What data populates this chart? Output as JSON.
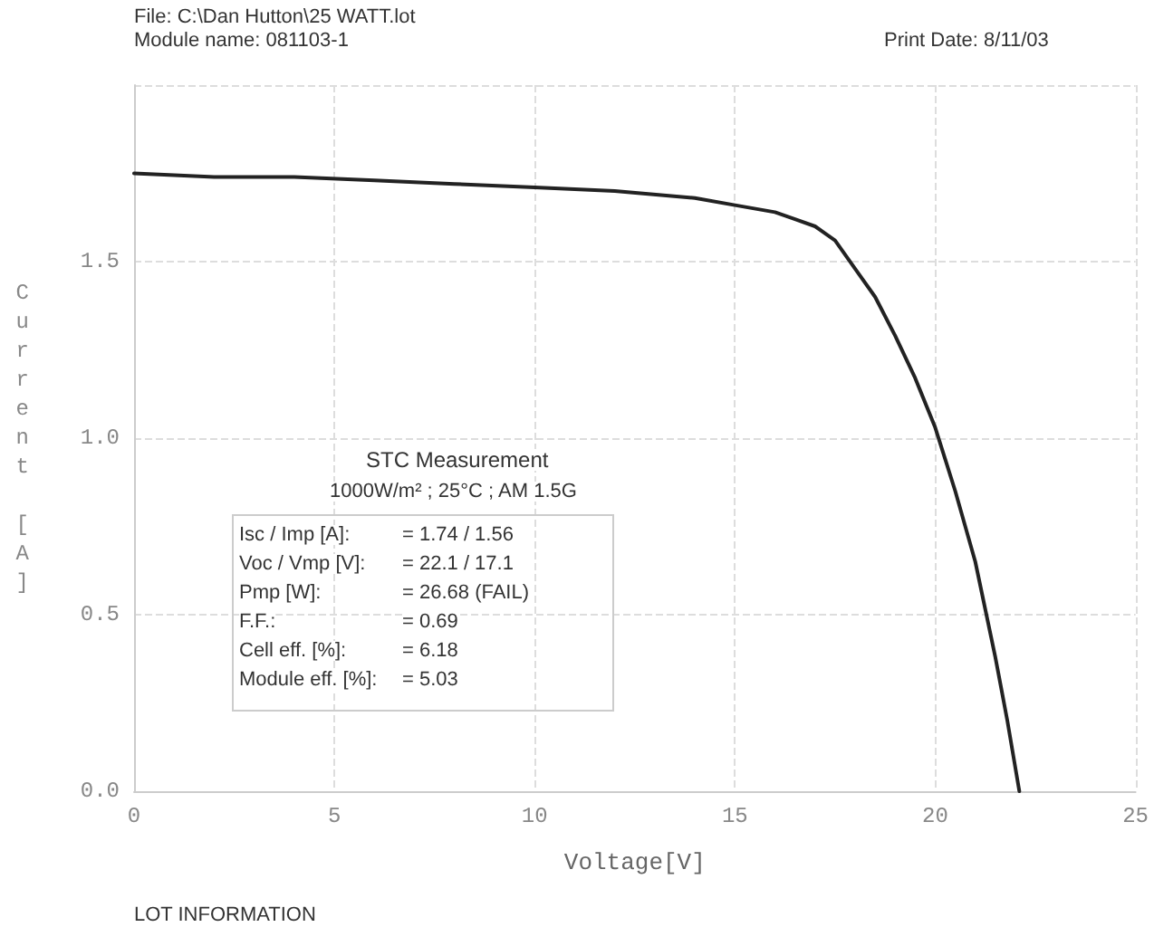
{
  "chart_data": {
    "type": "line",
    "xlabel": "Voltage[V]",
    "ylabel": "Current [A]",
    "annotations": [
      "File: C:\\Dan Hutton\\25 WATT.lot",
      "Module name: 081103-1",
      "Print Date: 8/11/03",
      "STC Measurement",
      "1000W/m² ; 25°C ; AM 1.5G",
      "Isc / Imp [A]: = 1.74 / 1.56",
      "Voc / Vmp [V]: = 22.1 / 17.1",
      "Pmp [W]: = 26.68 (FAIL)",
      "F.F.: = 0.69",
      "Cell eff. [%]: = 6.18",
      "Module eff. [%]: = 5.03",
      "LOT INFORMATION"
    ],
    "x": [
      0,
      2,
      4,
      6,
      8,
      10,
      12,
      14,
      15,
      16,
      16.5,
      17,
      17.5,
      18,
      18.5,
      19,
      19.5,
      20,
      20.5,
      21,
      21.5,
      21.8,
      22.1
    ],
    "series": [
      {
        "color": "#222222",
        "values": [
          1.75,
          1.74,
          1.74,
          1.73,
          1.72,
          1.71,
          1.7,
          1.68,
          1.66,
          1.64,
          1.62,
          1.6,
          1.56,
          1.48,
          1.4,
          1.29,
          1.17,
          1.03,
          0.85,
          0.65,
          0.38,
          0.2,
          0
        ]
      }
    ],
    "xlim": [
      0,
      25
    ],
    "xticks": [
      0,
      5,
      10,
      15,
      20,
      25
    ],
    "ylim": [
      0,
      2
    ],
    "yticks": [
      {
        "value": 0,
        "label": "0.0"
      },
      {
        "value": 0.5,
        "label": "0.5"
      },
      {
        "value": 1,
        "label": "1.0"
      },
      {
        "value": 1.5,
        "label": "1.5"
      },
      {
        "value": 2,
        "label": null
      }
    ],
    "grid": true,
    "marker": "none",
    "line_style": "solid"
  }
}
